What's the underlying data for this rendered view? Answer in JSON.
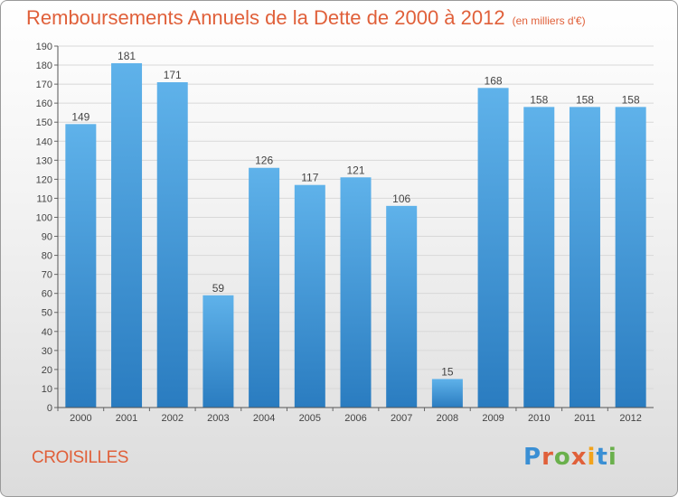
{
  "header": {
    "title": "Remboursements Annuels de la Dette de 2000 à 2012",
    "unit": "(en milliers d'€)"
  },
  "footer": {
    "city": "CROISILLES",
    "brand": "Proxiti",
    "brand_colors": [
      "#3a8fd4",
      "#e0603a",
      "#6ab04c",
      "#e0603a",
      "#f2a31b",
      "#3a8fd4",
      "#6ab04c"
    ]
  },
  "chart_data": {
    "type": "bar",
    "categories": [
      "2000",
      "2001",
      "2002",
      "2003",
      "2004",
      "2005",
      "2006",
      "2007",
      "2008",
      "2009",
      "2010",
      "2011",
      "2012"
    ],
    "values": [
      149,
      181,
      171,
      59,
      126,
      117,
      121,
      106,
      15,
      168,
      158,
      158,
      158
    ],
    "ylim": [
      0,
      190
    ],
    "ytick_step": 10,
    "grid": "horizontal",
    "bar_color": "#4da3e0",
    "bar_color_dark": "#2a7fc4",
    "data_labels": true
  }
}
